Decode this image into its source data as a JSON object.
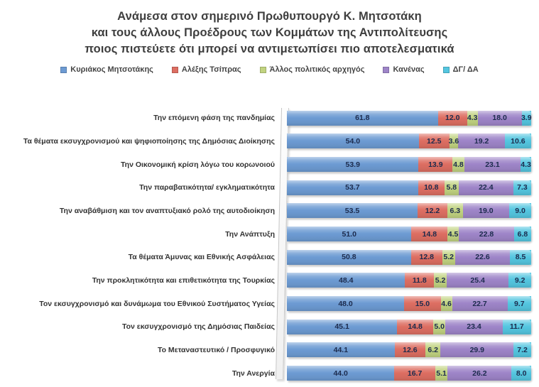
{
  "title": {
    "lines": [
      "Ανάμεσα στον σημερινό Πρωθυπουργό Κ. Μητσοτάκη",
      "και τους άλλους Προέδρους των Κομμάτων της Αντιπολίτευσης",
      "ποιος πιστεύετε ότι μπορεί να αντιμετωπίσει πιο αποτελεσματικά"
    ]
  },
  "chart_data": {
    "type": "bar",
    "orientation": "horizontal",
    "stacked": true,
    "unit": "%",
    "value_format": "one decimal",
    "legend_position": "top",
    "grid": false,
    "xlim": [
      0,
      100
    ],
    "title": "Ανάμεσα στον σημερινό Πρωθυπουργό Κ. Μητσοτάκη και τους άλλους Προέδρους των Κομμάτων της Αντιπολίτευσης ποιος πιστεύετε ότι μπορεί να αντιμετωπίσει πιο αποτελεσματικά",
    "value_text_color": "#1c2b4d",
    "categories": [
      "Την επόμενη φάση της πανδημίας",
      "Τα θέματα εκσυγχρονισμού και ψηφιοποίησης της Δημόσιας Διοίκησης",
      "Την Οικονομική κρίση λόγω του κορωνοιού",
      "Την παραβατικότητα/ εγκληματικότητα",
      "Την αναβάθμιση και τον αναπτυξιακό ρολό της αυτοδιοίκηση",
      "Την Ανάπτυξη",
      "Τα θέματα Άμυνας και Εθνικής Ασφάλειας",
      "Την προκλητικότητα και επιθετικότητα της Τουρκίας",
      "Τον εκσυγχρονισμό και δυνάμωμα του Εθνικού Συστήματος Υγείας",
      "Τον εκσυγχρονισμό της Δημόσιας Παιδείας",
      "Το Μεταναστευτικό / Προσφυγικό",
      "Την Ανεργία"
    ],
    "series": [
      {
        "name": "Κυριάκος Μητσοτάκης",
        "color": "#6d9bd3",
        "values": [
          61.8,
          54.0,
          53.9,
          53.7,
          53.5,
          51.0,
          50.8,
          48.4,
          48.0,
          45.1,
          44.1,
          44.0
        ]
      },
      {
        "name": "Αλέξης Τσίπρας",
        "color": "#dd6e62",
        "values": [
          12.0,
          12.5,
          13.9,
          10.8,
          12.2,
          14.8,
          12.8,
          11.8,
          15.0,
          14.8,
          12.6,
          16.7
        ]
      },
      {
        "name": "Άλλος πολιτικός αρχηγός",
        "color": "#c1d380",
        "values": [
          4.3,
          3.6,
          4.8,
          5.8,
          6.3,
          4.5,
          5.2,
          5.2,
          4.6,
          5.0,
          6.2,
          5.1
        ]
      },
      {
        "name": "Κανένας",
        "color": "#9e85c8",
        "values": [
          18.0,
          19.2,
          23.1,
          22.4,
          19.0,
          22.8,
          22.6,
          25.4,
          22.7,
          23.4,
          29.9,
          26.2
        ]
      },
      {
        "name": "ΔΓ/ ΔΑ",
        "color": "#54c6e0",
        "values": [
          3.9,
          10.6,
          4.3,
          7.3,
          9.0,
          6.8,
          8.5,
          9.2,
          9.7,
          11.7,
          7.2,
          8.0
        ]
      }
    ]
  }
}
